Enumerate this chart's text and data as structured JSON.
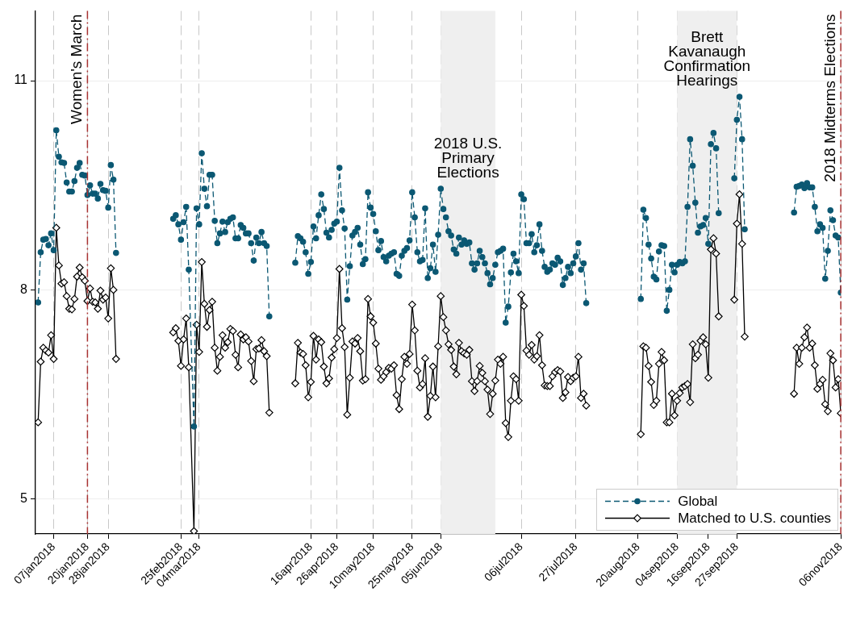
{
  "chart_data": {
    "type": "line",
    "x": [
      "2018-01-01",
      "2018-01-02",
      "2018-01-03",
      "2018-01-04",
      "2018-01-05",
      "2018-01-06",
      "2018-01-07",
      "2018-01-08",
      "2018-01-09",
      "2018-01-10",
      "2018-01-11",
      "2018-01-12",
      "2018-01-13",
      "2018-01-14",
      "2018-01-15",
      "2018-01-16",
      "2018-01-17",
      "2018-01-18",
      "2018-01-19",
      "2018-01-20",
      "2018-01-21",
      "2018-01-22",
      "2018-01-23",
      "2018-01-24",
      "2018-01-25",
      "2018-01-26",
      "2018-01-27",
      "2018-01-28",
      "2018-01-29",
      "2018-01-30",
      "2018-01-31",
      "2018-02-10",
      "2018-02-22",
      "2018-02-23",
      "2018-02-24",
      "2018-02-25",
      "2018-02-26",
      "2018-02-27",
      "2018-02-28",
      "2018-03-02",
      "2018-03-03",
      "2018-03-04",
      "2018-03-05",
      "2018-03-06",
      "2018-03-07",
      "2018-03-08",
      "2018-03-09",
      "2018-03-10",
      "2018-03-11",
      "2018-03-12",
      "2018-03-13",
      "2018-03-14",
      "2018-03-15",
      "2018-03-16",
      "2018-03-17",
      "2018-03-18",
      "2018-03-19",
      "2018-03-20",
      "2018-03-21",
      "2018-03-22",
      "2018-03-23",
      "2018-03-24",
      "2018-03-25",
      "2018-03-26",
      "2018-03-27",
      "2018-03-28",
      "2018-03-29",
      "2018-03-30",
      "2018-03-31",
      "2018-04-05",
      "2018-04-10",
      "2018-04-11",
      "2018-04-12",
      "2018-04-13",
      "2018-04-14",
      "2018-04-15",
      "2018-04-16",
      "2018-04-17",
      "2018-04-18",
      "2018-04-19",
      "2018-04-20",
      "2018-04-21",
      "2018-04-22",
      "2018-04-23",
      "2018-04-24",
      "2018-04-25",
      "2018-04-26",
      "2018-04-27",
      "2018-04-28",
      "2018-04-29",
      "2018-04-30",
      "2018-05-01",
      "2018-05-02",
      "2018-05-03",
      "2018-05-04",
      "2018-05-05",
      "2018-05-06",
      "2018-05-07",
      "2018-05-08",
      "2018-05-09",
      "2018-05-10",
      "2018-05-11",
      "2018-05-12",
      "2018-05-13",
      "2018-05-14",
      "2018-05-15",
      "2018-05-16",
      "2018-05-17",
      "2018-05-18",
      "2018-05-19",
      "2018-05-20",
      "2018-05-21",
      "2018-05-22",
      "2018-05-23",
      "2018-05-24",
      "2018-05-25",
      "2018-05-26",
      "2018-05-27",
      "2018-05-28",
      "2018-05-29",
      "2018-05-30",
      "2018-05-31",
      "2018-06-01",
      "2018-06-02",
      "2018-06-03",
      "2018-06-04",
      "2018-06-05",
      "2018-06-06",
      "2018-06-07",
      "2018-06-08",
      "2018-06-09",
      "2018-06-10",
      "2018-06-11",
      "2018-06-12",
      "2018-06-13",
      "2018-06-14",
      "2018-06-15",
      "2018-06-16",
      "2018-06-17",
      "2018-06-18",
      "2018-06-19",
      "2018-06-20",
      "2018-06-21",
      "2018-06-22",
      "2018-06-23",
      "2018-06-24",
      "2018-06-25",
      "2018-06-26",
      "2018-06-27",
      "2018-06-28",
      "2018-06-29",
      "2018-06-30",
      "2018-07-01",
      "2018-07-02",
      "2018-07-03",
      "2018-07-04",
      "2018-07-05",
      "2018-07-06",
      "2018-07-07",
      "2018-07-08",
      "2018-07-09",
      "2018-07-10",
      "2018-07-11",
      "2018-07-12",
      "2018-07-13",
      "2018-07-14",
      "2018-07-15",
      "2018-07-16",
      "2018-07-17",
      "2018-07-18",
      "2018-07-19",
      "2018-07-20",
      "2018-07-21",
      "2018-07-22",
      "2018-07-23",
      "2018-07-24",
      "2018-07-25",
      "2018-07-26",
      "2018-07-27",
      "2018-07-28",
      "2018-07-29",
      "2018-07-30",
      "2018-07-31",
      "2018-08-10",
      "2018-08-21",
      "2018-08-22",
      "2018-08-23",
      "2018-08-24",
      "2018-08-25",
      "2018-08-26",
      "2018-08-27",
      "2018-08-28",
      "2018-08-29",
      "2018-08-30",
      "2018-08-31",
      "2018-09-01",
      "2018-09-02",
      "2018-09-03",
      "2018-09-04",
      "2018-09-05",
      "2018-09-06",
      "2018-09-07",
      "2018-09-08",
      "2018-09-09",
      "2018-09-10",
      "2018-09-11",
      "2018-09-12",
      "2018-09-13",
      "2018-09-14",
      "2018-09-15",
      "2018-09-16",
      "2018-09-17",
      "2018-09-18",
      "2018-09-19",
      "2018-09-20",
      "2018-09-23",
      "2018-09-26",
      "2018-09-27",
      "2018-09-28",
      "2018-09-29",
      "2018-09-30",
      "2018-10-10",
      "2018-10-19",
      "2018-10-20",
      "2018-10-21",
      "2018-10-22",
      "2018-10-23",
      "2018-10-24",
      "2018-10-25",
      "2018-10-26",
      "2018-10-27",
      "2018-10-28",
      "2018-10-29",
      "2018-10-30",
      "2018-10-31",
      "2018-11-01",
      "2018-11-02",
      "2018-11-03",
      "2018-11-04",
      "2018-11-05",
      "2018-11-06"
    ],
    "series": [
      {
        "name": "Global",
        "color": "#0b5873",
        "marker": "circle",
        "line_style": "dashed",
        "values": [
          7.82,
          8.54,
          8.72,
          8.73,
          8.64,
          8.81,
          8.57,
          10.29,
          9.91,
          9.83,
          9.82,
          9.54,
          9.41,
          9.41,
          9.56,
          9.75,
          9.82,
          9.65,
          9.64,
          9.36,
          9.5,
          9.38,
          9.38,
          9.31,
          9.52,
          9.43,
          9.42,
          9.18,
          9.79,
          9.58,
          8.53,
          null,
          9.02,
          9.07,
          8.94,
          8.72,
          8.97,
          9.19,
          8.29,
          6.04,
          9.17,
          8.94,
          9.96,
          9.45,
          9.2,
          9.65,
          9.65,
          8.99,
          8.67,
          8.81,
          8.98,
          8.83,
          8.97,
          9.02,
          9.04,
          8.74,
          8.74,
          8.93,
          8.89,
          8.81,
          8.81,
          8.67,
          8.42,
          8.75,
          8.67,
          8.83,
          8.67,
          8.63,
          7.62,
          null,
          8.39,
          8.77,
          8.74,
          8.69,
          8.54,
          8.23,
          8.4,
          8.91,
          8.74,
          9.07,
          9.37,
          9.16,
          8.82,
          8.75,
          8.86,
          8.95,
          8.98,
          9.75,
          9.14,
          8.88,
          7.86,
          8.34,
          8.78,
          8.83,
          8.89,
          8.65,
          8.37,
          8.44,
          9.4,
          9.18,
          9.09,
          8.84,
          8.57,
          8.7,
          8.47,
          8.41,
          8.49,
          8.52,
          8.54,
          8.23,
          8.2,
          8.49,
          8.56,
          8.6,
          8.71,
          9.4,
          9.04,
          8.54,
          8.41,
          8.43,
          9.17,
          8.17,
          8.31,
          8.65,
          8.26,
          8.79,
          9.45,
          9.16,
          9.04,
          8.84,
          8.78,
          8.58,
          8.52,
          8.75,
          8.65,
          8.71,
          8.66,
          8.68,
          8.38,
          8.29,
          8.38,
          8.56,
          8.47,
          8.38,
          8.24,
          8.08,
          8.17,
          8.36,
          8.54,
          8.56,
          8.59,
          7.53,
          7.76,
          8.25,
          8.52,
          8.41,
          8.24,
          9.37,
          9.3,
          8.67,
          8.67,
          8.8,
          8.54,
          8.64,
          8.94,
          8.56,
          8.33,
          8.26,
          8.29,
          8.38,
          8.36,
          8.46,
          8.41,
          8.07,
          8.17,
          8.33,
          8.24,
          8.38,
          8.48,
          8.67,
          8.29,
          8.38,
          7.81,
          null,
          7.87,
          9.15,
          9.03,
          8.65,
          8.45,
          8.19,
          8.15,
          8.55,
          8.64,
          8.63,
          7.7,
          8.0,
          8.36,
          8.25,
          8.36,
          8.4,
          8.38,
          8.41,
          9.19,
          10.16,
          9.78,
          9.25,
          8.82,
          8.91,
          8.93,
          9.03,
          8.66,
          10.09,
          10.25,
          10.03,
          9.1,
          null,
          9.6,
          10.44,
          10.77,
          10.16,
          8.87,
          null,
          9.11,
          9.48,
          9.49,
          9.51,
          9.46,
          9.53,
          9.47,
          9.47,
          9.19,
          8.84,
          8.94,
          8.89,
          8.16,
          8.56,
          9.14,
          9.0,
          8.78,
          8.75,
          7.96
        ]
      },
      {
        "name": "Matched to U.S. counties",
        "color": "#000000",
        "marker": "diamond",
        "line_style": "solid",
        "values": [
          6.1,
          6.97,
          7.17,
          7.13,
          7.1,
          7.35,
          7.01,
          8.89,
          8.35,
          8.09,
          8.11,
          7.91,
          7.73,
          7.72,
          7.87,
          8.19,
          8.32,
          8.18,
          8.13,
          7.84,
          8.02,
          7.83,
          7.82,
          7.73,
          7.99,
          7.86,
          7.89,
          7.59,
          8.31,
          8.0,
          7.01,
          null,
          7.39,
          7.45,
          7.27,
          6.91,
          7.29,
          7.59,
          6.89,
          4.54,
          7.5,
          7.11,
          8.4,
          7.8,
          7.47,
          7.71,
          7.83,
          7.17,
          6.84,
          7.04,
          7.35,
          7.17,
          7.25,
          7.44,
          7.41,
          7.07,
          6.89,
          7.36,
          7.29,
          7.32,
          7.26,
          6.98,
          6.69,
          7.15,
          7.16,
          7.28,
          7.12,
          7.05,
          6.24,
          null,
          6.66,
          7.24,
          7.1,
          7.08,
          6.92,
          6.46,
          6.68,
          7.34,
          7.0,
          7.29,
          7.25,
          6.9,
          6.66,
          6.73,
          7.03,
          7.15,
          7.31,
          8.3,
          7.45,
          7.18,
          6.21,
          6.74,
          7.26,
          7.23,
          7.31,
          7.12,
          6.7,
          6.72,
          7.87,
          7.62,
          7.53,
          7.23,
          6.87,
          6.71,
          6.76,
          6.82,
          6.88,
          6.87,
          6.92,
          6.49,
          6.29,
          6.72,
          7.04,
          6.94,
          7.08,
          7.79,
          7.42,
          6.84,
          6.6,
          6.65,
          7.02,
          6.18,
          6.48,
          6.9,
          6.46,
          7.19,
          7.91,
          7.61,
          7.42,
          7.22,
          7.14,
          6.9,
          6.79,
          7.24,
          7.12,
          7.09,
          7.07,
          7.14,
          6.69,
          6.55,
          6.69,
          6.91,
          6.81,
          6.69,
          6.57,
          6.22,
          6.51,
          6.7,
          7.0,
          6.94,
          7.04,
          6.09,
          5.89,
          6.41,
          6.76,
          6.72,
          6.41,
          7.93,
          7.77,
          7.13,
          7.07,
          7.21,
          7.0,
          7.05,
          7.35,
          6.92,
          6.63,
          6.62,
          6.62,
          6.76,
          6.82,
          6.85,
          6.83,
          6.45,
          6.53,
          6.75,
          6.69,
          6.74,
          6.76,
          7.04,
          6.45,
          6.51,
          6.34,
          null,
          5.93,
          7.19,
          7.17,
          6.91,
          6.68,
          6.35,
          6.41,
          6.94,
          7.11,
          6.99,
          6.1,
          6.1,
          6.51,
          6.2,
          6.41,
          6.52,
          6.6,
          6.62,
          6.65,
          6.39,
          7.22,
          7.02,
          7.07,
          7.27,
          7.32,
          7.22,
          6.74,
          8.58,
          8.74,
          8.52,
          7.62,
          null,
          7.86,
          8.95,
          9.37,
          8.66,
          7.33,
          null,
          6.51,
          7.17,
          6.94,
          7.17,
          7.32,
          7.46,
          7.17,
          7.23,
          6.92,
          6.58,
          6.65,
          6.71,
          6.36,
          6.26,
          7.09,
          6.99,
          6.6,
          6.72,
          6.23
        ]
      }
    ],
    "xlim": [
      "2017-12-31",
      "2018-11-06"
    ],
    "xticks": [
      {
        "value": "2018-01-07",
        "label": "07jan2018"
      },
      {
        "value": "2018-01-20",
        "label": "20jan2018"
      },
      {
        "value": "2018-01-28",
        "label": "28jan2018"
      },
      {
        "value": "2018-02-25",
        "label": "25feb2018"
      },
      {
        "value": "2018-03-04",
        "label": "04mar2018"
      },
      {
        "value": "2018-04-16",
        "label": "16apr2018"
      },
      {
        "value": "2018-04-26",
        "label": "26apr2018"
      },
      {
        "value": "2018-05-10",
        "label": "10may2018"
      },
      {
        "value": "2018-05-25",
        "label": "25may2018"
      },
      {
        "value": "2018-06-05",
        "label": "05jun2018"
      },
      {
        "value": "2018-07-06",
        "label": "06jul2018"
      },
      {
        "value": "2018-07-27",
        "label": "27jul2018"
      },
      {
        "value": "2018-08-20",
        "label": "20aug2018"
      },
      {
        "value": "2018-09-04",
        "label": "04sep2018"
      },
      {
        "value": "2018-09-16",
        "label": "16sep2018"
      },
      {
        "value": "2018-09-27",
        "label": "27sep2018"
      },
      {
        "value": "2018-11-06",
        "label": "06nov2018"
      }
    ],
    "ylim": [
      4.5,
      12
    ],
    "yticks": [
      5,
      8,
      11
    ],
    "grid": true,
    "legend": "bottom right",
    "ref_lines": [
      {
        "axis": "x",
        "value": "2018-01-20",
        "label": "Women's March",
        "color": "#a83232",
        "line_style": "dashed"
      },
      {
        "axis": "x",
        "value": "2018-11-06",
        "label": "2018 Midterms Elections",
        "color": "#a83232",
        "line_style": "dashed"
      }
    ],
    "bands": [
      {
        "axis": "x",
        "from": "2018-06-05",
        "to": "2018-06-26",
        "label": "2018 U.S.\nPrimary\nElections",
        "color": "#efefef"
      },
      {
        "axis": "x",
        "from": "2018-09-04",
        "to": "2018-09-27",
        "label": "Brett\nKavanaugh\nConfirmation\nHearings",
        "color": "#efefef"
      }
    ]
  }
}
